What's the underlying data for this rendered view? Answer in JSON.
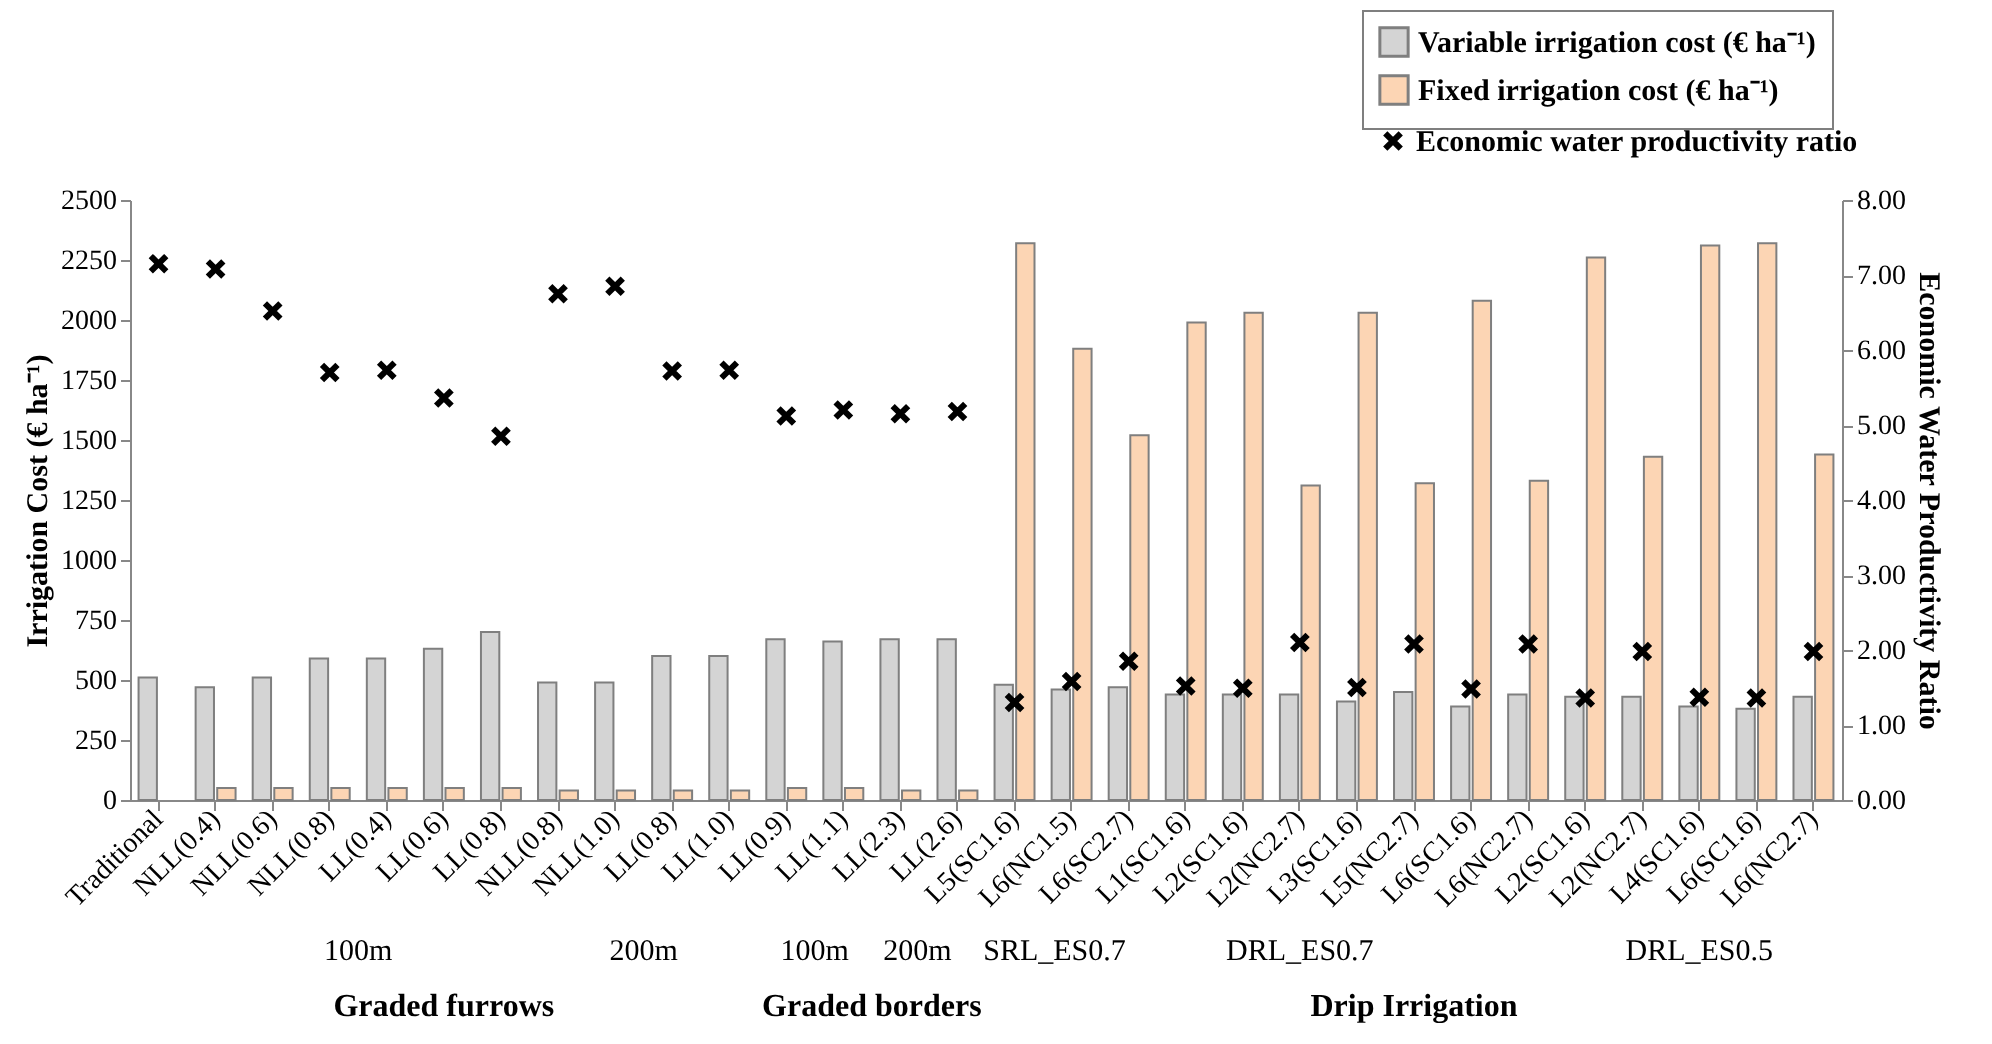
{
  "chart_data": {
    "type": "bar",
    "categories": [
      "Traditional",
      "NLL(0.4)",
      "NLL(0.6)",
      "NLL(0.8)",
      "LL(0.4)",
      "LL(0.6)",
      "LL(0.8)",
      "NLL(0.8)",
      "NLL(1.0)",
      "LL(0.8)",
      "LL(1.0)",
      "LL(0.9)",
      "LL(1.1)",
      "LL(2.3)",
      "LL(2.6)",
      "L5(SC1.6)",
      "L6(NC1.5)",
      "L6(SC2.7)",
      "L1(SC1.6)",
      "L2(SC1.6)",
      "L2(NC2.7)",
      "L3(SC1.6)",
      "L5(NC2.7)",
      "L6(SC1.6)",
      "L6(NC2.7)",
      "L2(SC1.6)",
      "L2(NC2.7)",
      "L4(SC1.6)",
      "L6(SC1.6)",
      "L6(NC2.7)"
    ],
    "series": [
      {
        "name": "Variable irrigation cost (€ ha⁻¹)",
        "color": "#d4d4d4",
        "values": [
          510,
          470,
          510,
          590,
          590,
          630,
          700,
          490,
          490,
          600,
          600,
          670,
          660,
          670,
          670,
          480,
          460,
          470,
          440,
          440,
          440,
          410,
          450,
          390,
          440,
          430,
          430,
          390,
          380,
          430
        ]
      },
      {
        "name": "Fixed irrigation  cost (€ ha⁻¹)",
        "color": "#fcd5b4",
        "values": [
          null,
          50,
          50,
          50,
          50,
          50,
          50,
          40,
          40,
          40,
          40,
          50,
          50,
          40,
          40,
          2320,
          1880,
          1520,
          1990,
          2030,
          1310,
          2030,
          1320,
          2080,
          1330,
          2260,
          1430,
          2310,
          2320,
          1440
        ]
      },
      {
        "name": "Economic water productivity ratio",
        "type": "scatter",
        "axis": "y2",
        "color": "#000000",
        "marker": "cross",
        "values": [
          7.15,
          7.08,
          6.52,
          5.7,
          5.73,
          5.36,
          4.85,
          6.75,
          6.85,
          5.72,
          5.73,
          5.12,
          5.2,
          5.15,
          5.18,
          1.3,
          1.58,
          1.85,
          1.52,
          1.49,
          2.1,
          1.5,
          2.08,
          1.48,
          2.08,
          1.36,
          1.98,
          1.37,
          1.36,
          1.98
        ]
      }
    ],
    "ylabel": "Irrigation Cost (€ ha⁻¹)",
    "y2label": "Economic Water Productivity Ratio",
    "ylim": [
      0,
      2500
    ],
    "yticks": [
      0,
      250,
      500,
      750,
      1000,
      1250,
      1500,
      1750,
      2000,
      2250,
      2500
    ],
    "y2lim": [
      0,
      8
    ],
    "y2ticks": [
      {
        "value": 0,
        "label": "0.00"
      },
      {
        "value": 1,
        "label": "1.00"
      },
      {
        "value": 2,
        "label": "2.00"
      },
      {
        "value": 3,
        "label": "3.00"
      },
      {
        "value": 4,
        "label": "4.00"
      },
      {
        "value": 5,
        "label": "5.00"
      },
      {
        "value": 6,
        "label": "6.00"
      },
      {
        "value": 7,
        "label": "7.00"
      },
      {
        "value": 8,
        "label": "8.00"
      }
    ],
    "annotations": [
      "100m",
      "200m",
      "100m",
      "200m",
      "SRL_ES0.7",
      "DRL_ES0.7",
      "DRL_ES0.5",
      "Graded furrows",
      "Graded borders",
      "Drip Irrigation"
    ],
    "legend": "top right",
    "grid": false
  }
}
